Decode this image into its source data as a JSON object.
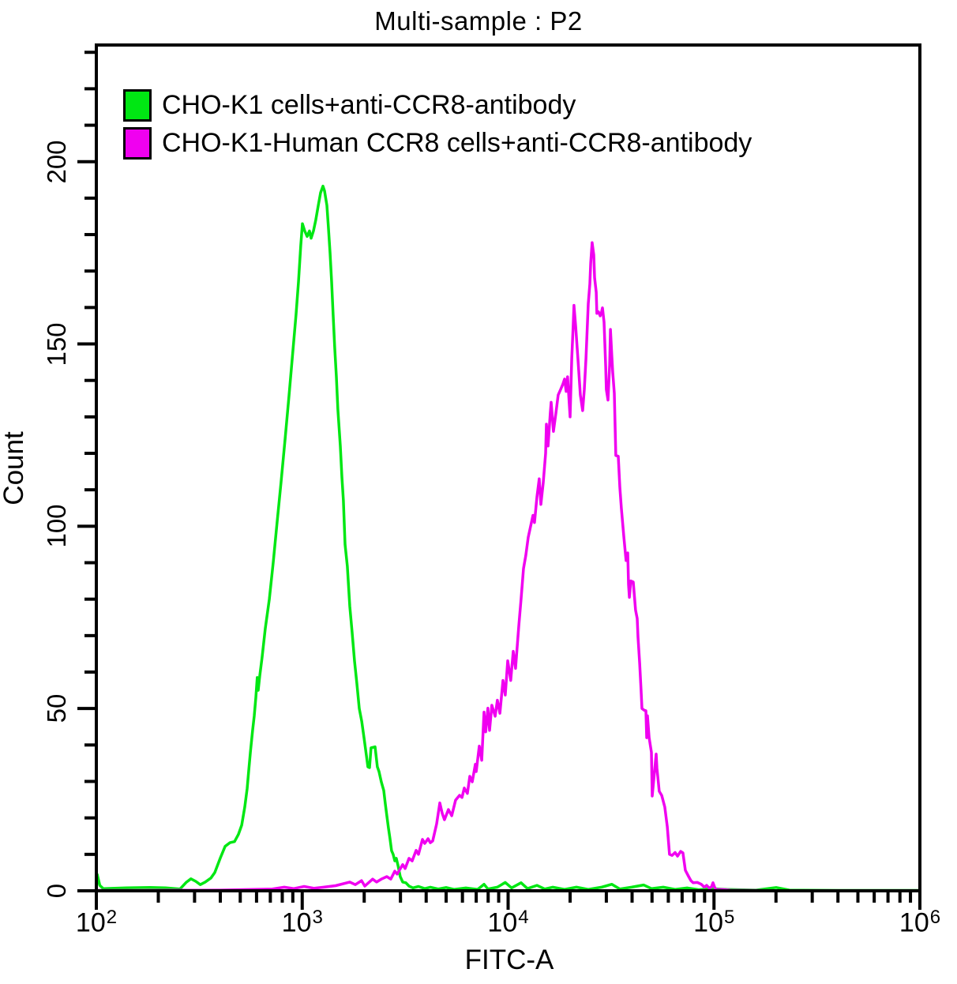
{
  "figure": {
    "title": "Multi-sample : P2"
  },
  "axes": {
    "x_label": "FITC-A",
    "y_label": "Count",
    "x_tick_base": "10",
    "x_tick_exponents": [
      2,
      3,
      4,
      5,
      6
    ],
    "y_tick_labels": [
      "0",
      "50",
      "100",
      "150",
      "200"
    ]
  },
  "chart_data": {
    "type": "line",
    "chart_kind": "flow-cytometry histogram overlay",
    "title": "Multi-sample : P2",
    "xlabel": "FITC-A",
    "ylabel": "Count",
    "x_scale": "log10",
    "xlim": [
      100,
      1000000
    ],
    "ylim": [
      0,
      232
    ],
    "x_ticks": [
      100,
      1000,
      10000,
      100000,
      1000000
    ],
    "y_ticks_major": [
      0,
      50,
      100,
      150,
      200
    ],
    "y_tick_minor_step": 10,
    "grid": false,
    "legend_position": "top-left",
    "background": "#ffffff",
    "axis_color": "#000000",
    "series": [
      {
        "name": "CHO-K1 cells+anti-CCR8-antibody",
        "color": "#00e713",
        "peak": {
          "x": 1260,
          "y": 193
        },
        "points": [
          [
            100,
            0.2
          ],
          [
            101,
            4.5
          ],
          [
            104,
            1.5
          ],
          [
            108,
            0.6
          ],
          [
            140,
            0.8
          ],
          [
            182,
            0.9
          ],
          [
            217,
            0.8
          ],
          [
            255,
            0.5
          ],
          [
            273,
            2.3
          ],
          [
            288,
            3.3
          ],
          [
            304,
            2.6
          ],
          [
            320,
            1.7
          ],
          [
            338,
            2.4
          ],
          [
            360,
            3.5
          ],
          [
            376,
            5
          ],
          [
            400,
            9
          ],
          [
            422,
            12.2
          ],
          [
            445,
            13.2
          ],
          [
            469,
            13.5
          ],
          [
            490,
            15.5
          ],
          [
            508,
            18
          ],
          [
            526,
            23
          ],
          [
            540,
            28
          ],
          [
            550,
            33
          ],
          [
            560,
            38
          ],
          [
            574,
            44
          ],
          [
            585,
            48
          ],
          [
            595,
            53
          ],
          [
            605,
            58.5
          ],
          [
            611,
            55
          ],
          [
            622,
            59
          ],
          [
            638,
            64
          ],
          [
            662,
            72
          ],
          [
            692,
            80
          ],
          [
            723,
            90
          ],
          [
            755,
            101
          ],
          [
            789,
            112
          ],
          [
            826,
            124
          ],
          [
            863,
            136
          ],
          [
            901,
            148
          ],
          [
            933,
            158
          ],
          [
            959,
            167
          ],
          [
            984,
            177
          ],
          [
            1002,
            183
          ],
          [
            1028,
            181
          ],
          [
            1057,
            179.5
          ],
          [
            1084,
            181
          ],
          [
            1104,
            179
          ],
          [
            1134,
            181
          ],
          [
            1164,
            184
          ],
          [
            1197,
            188
          ],
          [
            1228,
            191.5
          ],
          [
            1261,
            193.3
          ],
          [
            1283,
            192
          ],
          [
            1318,
            188
          ],
          [
            1340,
            182
          ],
          [
            1365,
            175
          ],
          [
            1389,
            167
          ],
          [
            1413,
            158
          ],
          [
            1438,
            149
          ],
          [
            1465,
            141
          ],
          [
            1490,
            132
          ],
          [
            1531,
            122
          ],
          [
            1559,
            113.5
          ],
          [
            1585,
            107
          ],
          [
            1614,
            95
          ],
          [
            1657,
            89
          ],
          [
            1702,
            78
          ],
          [
            1746,
            71
          ],
          [
            1795,
            63
          ],
          [
            1841,
            57
          ],
          [
            1892,
            50
          ],
          [
            1945,
            46.5
          ],
          [
            1995,
            42
          ],
          [
            2051,
            37
          ],
          [
            2084,
            34
          ],
          [
            2123,
            33.8
          ],
          [
            2158,
            39.2
          ],
          [
            2258,
            39.5
          ],
          [
            2317,
            34
          ],
          [
            2360,
            32.7
          ],
          [
            2421,
            29.9
          ],
          [
            2489,
            27.5
          ],
          [
            2531,
            24
          ],
          [
            2576,
            20.6
          ],
          [
            2622,
            17.3
          ],
          [
            2667,
            14.5
          ],
          [
            2715,
            11
          ],
          [
            2764,
            10
          ],
          [
            2815,
            8.2
          ],
          [
            2865,
            8.9
          ],
          [
            2917,
            7
          ],
          [
            2993,
            3.9
          ],
          [
            3076,
            2.4
          ],
          [
            3186,
            2.2
          ],
          [
            3302,
            1.3
          ],
          [
            3449,
            0.8
          ],
          [
            3672,
            1.2
          ],
          [
            3936,
            0.6
          ],
          [
            4190,
            1
          ],
          [
            4577,
            0.5
          ],
          [
            5000,
            0.9
          ],
          [
            5459,
            0.4
          ],
          [
            6233,
            0.8
          ],
          [
            7112,
            0.4
          ],
          [
            7638,
            1.8
          ],
          [
            7980,
            0.5
          ],
          [
            8872,
            1
          ],
          [
            9687,
            2.3
          ],
          [
            10400,
            0.8
          ],
          [
            11560,
            2.2
          ],
          [
            12410,
            0.6
          ],
          [
            13800,
            1.5
          ],
          [
            15070,
            0.5
          ],
          [
            16460,
            1
          ],
          [
            18800,
            0.4
          ],
          [
            21470,
            1
          ],
          [
            24510,
            0.4
          ],
          [
            28460,
            1
          ],
          [
            31920,
            1.8
          ],
          [
            34900,
            0.5
          ],
          [
            39810,
            1
          ],
          [
            45500,
            1.6
          ],
          [
            49650,
            0.6
          ],
          [
            56700,
            1
          ],
          [
            64740,
            0.4
          ],
          [
            73950,
            0.8
          ],
          [
            84400,
            0.3
          ],
          [
            96380,
            0.6
          ],
          [
            115100,
            0.4
          ],
          [
            160000,
            0.2
          ],
          [
            200400,
            0.9
          ],
          [
            232600,
            0.2
          ],
          [
            400000,
            0.1
          ],
          [
            1000000,
            0.1
          ]
        ]
      },
      {
        "name": "CHO-K1-Human CCR8 cells+anti-CCR8-antibody",
        "color": "#f000f0",
        "peak": {
          "x": 25600,
          "y": 178
        },
        "points": [
          [
            100,
            0.1
          ],
          [
            160,
            0.1
          ],
          [
            250,
            0.15
          ],
          [
            400,
            0.2
          ],
          [
            716,
            0.5
          ],
          [
            818,
            1
          ],
          [
            910,
            0.6
          ],
          [
            1021,
            1.2
          ],
          [
            1143,
            0.7
          ],
          [
            1272,
            1
          ],
          [
            1452,
            1.4
          ],
          [
            1702,
            2.4
          ],
          [
            1811,
            1.7
          ],
          [
            1941,
            2.8
          ],
          [
            2014,
            1.3
          ],
          [
            2198,
            3.2
          ],
          [
            2296,
            2.4
          ],
          [
            2421,
            3.2
          ],
          [
            2576,
            3.9
          ],
          [
            2692,
            3.2
          ],
          [
            2815,
            5.4
          ],
          [
            2892,
            4.6
          ],
          [
            3076,
            7.2
          ],
          [
            3162,
            6.1
          ],
          [
            3302,
            8.9
          ],
          [
            3420,
            8.2
          ],
          [
            3573,
            11.1
          ],
          [
            3672,
            10
          ],
          [
            3837,
            14.1
          ],
          [
            3936,
            13
          ],
          [
            4083,
            14.3
          ],
          [
            4190,
            13.2
          ],
          [
            4304,
            13.7
          ],
          [
            4498,
            18.4
          ],
          [
            4657,
            24.1
          ],
          [
            4786,
            21.2
          ],
          [
            4909,
            19.5
          ],
          [
            5129,
            22.3
          ],
          [
            5321,
            20.6
          ],
          [
            5559,
            24.9
          ],
          [
            5808,
            26.2
          ],
          [
            5970,
            25.6
          ],
          [
            6124,
            28.2
          ],
          [
            6340,
            26.7
          ],
          [
            6516,
            31.4
          ],
          [
            6699,
            29.9
          ],
          [
            6934,
            34.7
          ],
          [
            6998,
            32.7
          ],
          [
            7244,
            39.7
          ],
          [
            7447,
            35.8
          ],
          [
            7638,
            49
          ],
          [
            7780,
            43.6
          ],
          [
            7980,
            50.1
          ],
          [
            8128,
            44
          ],
          [
            8337,
            50.9
          ],
          [
            8650,
            47.9
          ],
          [
            8872,
            52.3
          ],
          [
            9120,
            48.7
          ],
          [
            9441,
            57.7
          ],
          [
            9687,
            53.7
          ],
          [
            9954,
            63.1
          ],
          [
            10300,
            57.7
          ],
          [
            10590,
            65.7
          ],
          [
            10870,
            61
          ],
          [
            11270,
            72.6
          ],
          [
            11560,
            80
          ],
          [
            11880,
            88.4
          ],
          [
            12190,
            92
          ],
          [
            12530,
            97
          ],
          [
            12860,
            100
          ],
          [
            13210,
            103
          ],
          [
            13430,
            101
          ],
          [
            13800,
            108
          ],
          [
            14160,
            113
          ],
          [
            14420,
            106
          ],
          [
            14820,
            112
          ],
          [
            15210,
            120
          ],
          [
            15350,
            128
          ],
          [
            15630,
            122
          ],
          [
            16030,
            131
          ],
          [
            16180,
            134
          ],
          [
            16600,
            126
          ],
          [
            17060,
            131
          ],
          [
            17500,
            136
          ],
          [
            17990,
            137.5
          ],
          [
            18450,
            139
          ],
          [
            18800,
            140.4
          ],
          [
            19140,
            137
          ],
          [
            19450,
            141
          ],
          [
            20000,
            130
          ],
          [
            20370,
            146
          ],
          [
            20700,
            155
          ],
          [
            20890,
            160.6
          ],
          [
            21280,
            155
          ],
          [
            21830,
            146
          ],
          [
            22440,
            136
          ],
          [
            23010,
            131.7
          ],
          [
            23440,
            137.5
          ],
          [
            23880,
            146
          ],
          [
            24510,
            161
          ],
          [
            24950,
            166.4
          ],
          [
            25180,
            172.2
          ],
          [
            25590,
            177.8
          ],
          [
            26060,
            174.4
          ],
          [
            26300,
            168.2
          ],
          [
            26790,
            164.2
          ],
          [
            26980,
            158.4
          ],
          [
            27480,
            158.8
          ],
          [
            27990,
            157.7
          ],
          [
            28460,
            158.8
          ],
          [
            28720,
            159.9
          ],
          [
            29250,
            156
          ],
          [
            29790,
            143.7
          ],
          [
            30000,
            137.5
          ],
          [
            30550,
            134.6
          ],
          [
            31120,
            144.3
          ],
          [
            31410,
            154
          ],
          [
            31920,
            146.5
          ],
          [
            32210,
            142.2
          ],
          [
            32810,
            136.5
          ],
          [
            33340,
            119.4
          ],
          [
            34280,
            119.2
          ],
          [
            34900,
            110.7
          ],
          [
            35480,
            105
          ],
          [
            36480,
            97
          ],
          [
            37420,
            90.6
          ],
          [
            38110,
            92.7
          ],
          [
            38460,
            84
          ],
          [
            38820,
            80.5
          ],
          [
            39450,
            85
          ],
          [
            40550,
            84.7
          ],
          [
            41600,
            77
          ],
          [
            42360,
            74.7
          ],
          [
            42760,
            69.6
          ],
          [
            43550,
            62.4
          ],
          [
            44260,
            55
          ],
          [
            44670,
            50
          ],
          [
            45920,
            49.5
          ],
          [
            46670,
            49.4
          ],
          [
            47100,
            42
          ],
          [
            47530,
            48
          ],
          [
            48420,
            42
          ],
          [
            49650,
            38
          ],
          [
            50120,
            26
          ],
          [
            52360,
            37.5
          ],
          [
            52840,
            33.6
          ],
          [
            54200,
            27.3
          ],
          [
            55720,
            26.2
          ],
          [
            57680,
            23
          ],
          [
            59290,
            17.6
          ],
          [
            60810,
            10
          ],
          [
            62520,
            9.7
          ],
          [
            64740,
            10.5
          ],
          [
            66530,
            9.5
          ],
          [
            68870,
            10.8
          ],
          [
            70630,
            10.4
          ],
          [
            72610,
            5.6
          ],
          [
            75160,
            4
          ],
          [
            77270,
            2.8
          ],
          [
            79250,
            2.2
          ],
          [
            82940,
            2.3
          ],
          [
            86700,
            1.8
          ],
          [
            89740,
            1
          ],
          [
            92100,
            1.5
          ],
          [
            94620,
            0.8
          ],
          [
            97100,
            1
          ],
          [
            98860,
            2.2
          ],
          [
            100700,
            1
          ],
          [
            102300,
            0.3
          ],
          [
            109900,
            0.4
          ],
          [
            120200,
            0.15
          ],
          [
            200000,
            0.05
          ],
          [
            1000000,
            0.05
          ]
        ]
      }
    ]
  }
}
